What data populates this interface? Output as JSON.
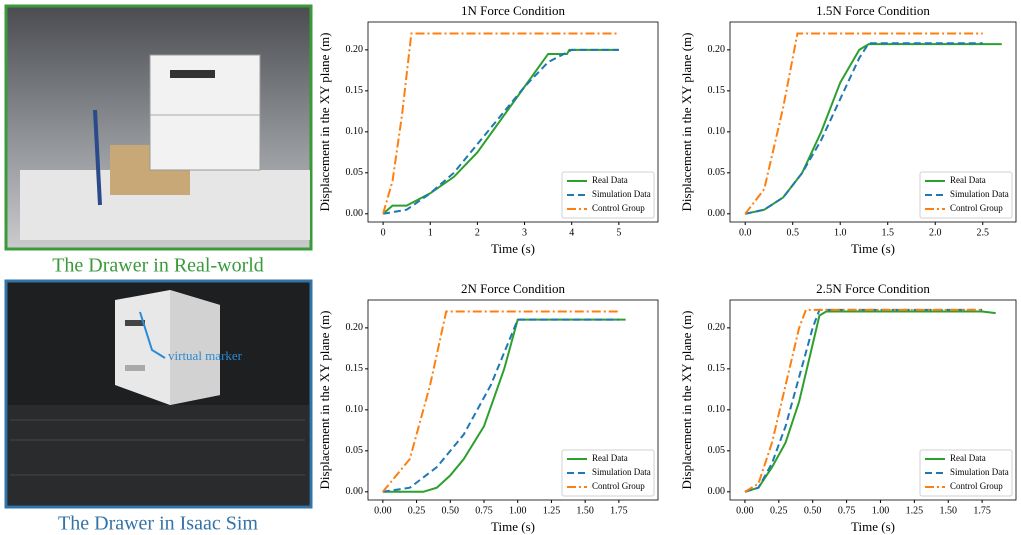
{
  "images": [
    {
      "caption": "The Drawer in Real-world"
    },
    {
      "caption": "The Drawer in Isaac Sim",
      "annotation": "virtual marker"
    }
  ],
  "chart_data": [
    {
      "type": "line",
      "title": "1N Force Condition",
      "xlabel": "Time (s)",
      "ylabel": "Displacement in the XY plane (m)",
      "xlim": [
        -0.32,
        5.83
      ],
      "ylim": [
        -0.01,
        0.234
      ],
      "xticks": [
        0,
        1,
        2,
        3,
        4,
        5
      ],
      "yticks": [
        {
          "value": 0,
          "label": "0.00"
        },
        {
          "value": 0.05,
          "label": "0.05"
        },
        {
          "value": 0.1,
          "label": "0.10"
        },
        {
          "value": 0.15,
          "label": "0.15"
        },
        {
          "value": 0.2,
          "label": "0.20"
        }
      ],
      "legend": "lower right",
      "series": [
        {
          "name": "Real Data",
          "color": "#2ca02c",
          "style": "solid",
          "x": [
            0,
            0.2,
            0.5,
            1,
            1.5,
            2,
            2.5,
            3,
            3.5,
            3.9,
            3.95,
            5
          ],
          "values": [
            0,
            0.01,
            0.01,
            0.025,
            0.045,
            0.075,
            0.115,
            0.155,
            0.195,
            0.195,
            0.2,
            0.2
          ]
        },
        {
          "name": "Simulation Data",
          "color": "#1f77b4",
          "style": "dashed",
          "x": [
            0,
            0.5,
            1,
            1.5,
            2,
            2.5,
            3,
            3.5,
            4,
            5
          ],
          "values": [
            0,
            0.005,
            0.025,
            0.05,
            0.085,
            0.12,
            0.155,
            0.185,
            0.2,
            0.2
          ]
        },
        {
          "name": "Control Group",
          "color": "#ff7f0e",
          "style": "dashdot",
          "x": [
            0,
            0.2,
            0.4,
            0.6,
            5
          ],
          "values": [
            0,
            0.04,
            0.12,
            0.22,
            0.22
          ]
        }
      ]
    },
    {
      "type": "line",
      "title": "1.5N Force Condition",
      "xlabel": "Time (s)",
      "ylabel": "Displacement in the XY plane (m)",
      "xlim": [
        -0.16,
        2.85
      ],
      "ylim": [
        -0.01,
        0.234
      ],
      "xticks": [
        {
          "value": 0,
          "label": "0.0"
        },
        {
          "value": 0.5,
          "label": "0.5"
        },
        {
          "value": 1,
          "label": "1.0"
        },
        {
          "value": 1.5,
          "label": "1.5"
        },
        {
          "value": 2,
          "label": "2.0"
        },
        {
          "value": 2.5,
          "label": "2.5"
        }
      ],
      "yticks": [
        {
          "value": 0,
          "label": "0.00"
        },
        {
          "value": 0.05,
          "label": "0.05"
        },
        {
          "value": 0.1,
          "label": "0.10"
        },
        {
          "value": 0.15,
          "label": "0.15"
        },
        {
          "value": 0.2,
          "label": "0.20"
        }
      ],
      "legend": "lower right",
      "series": [
        {
          "name": "Real Data",
          "color": "#2ca02c",
          "style": "solid",
          "x": [
            0,
            0.2,
            0.4,
            0.6,
            0.8,
            1.0,
            1.2,
            1.3,
            2.7
          ],
          "values": [
            0,
            0.005,
            0.02,
            0.05,
            0.1,
            0.16,
            0.2,
            0.207,
            0.207
          ]
        },
        {
          "name": "Simulation Data",
          "color": "#1f77b4",
          "style": "dashed",
          "x": [
            0,
            0.2,
            0.4,
            0.6,
            0.8,
            1.0,
            1.2,
            1.3,
            2.5
          ],
          "values": [
            0,
            0.005,
            0.02,
            0.05,
            0.09,
            0.14,
            0.19,
            0.208,
            0.208
          ]
        },
        {
          "name": "Control Group",
          "color": "#ff7f0e",
          "style": "dashdot",
          "x": [
            0,
            0.2,
            0.4,
            0.55,
            2.5
          ],
          "values": [
            0,
            0.03,
            0.13,
            0.22,
            0.22
          ]
        }
      ]
    },
    {
      "type": "line",
      "title": "2N Force Condition",
      "xlabel": "Time (s)",
      "ylabel": "Displacement in the XY plane (m)",
      "xlim": [
        -0.11,
        2.04
      ],
      "ylim": [
        -0.01,
        0.234
      ],
      "xticks": [
        {
          "value": 0,
          "label": "0.00"
        },
        {
          "value": 0.25,
          "label": "0.25"
        },
        {
          "value": 0.5,
          "label": "0.50"
        },
        {
          "value": 0.75,
          "label": "0.75"
        },
        {
          "value": 1,
          "label": "1.00"
        },
        {
          "value": 1.25,
          "label": "1.25"
        },
        {
          "value": 1.5,
          "label": "1.50"
        },
        {
          "value": 1.75,
          "label": "1.75"
        }
      ],
      "yticks": [
        {
          "value": 0,
          "label": "0.00"
        },
        {
          "value": 0.05,
          "label": "0.05"
        },
        {
          "value": 0.1,
          "label": "0.10"
        },
        {
          "value": 0.15,
          "label": "0.15"
        },
        {
          "value": 0.2,
          "label": "0.20"
        }
      ],
      "legend": "lower right",
      "series": [
        {
          "name": "Real Data",
          "color": "#2ca02c",
          "style": "solid",
          "x": [
            0,
            0.3,
            0.4,
            0.5,
            0.6,
            0.75,
            0.9,
            1.0,
            1.8
          ],
          "values": [
            0,
            0,
            0.005,
            0.02,
            0.04,
            0.08,
            0.15,
            0.21,
            0.21
          ]
        },
        {
          "name": "Simulation Data",
          "color": "#1f77b4",
          "style": "dashed",
          "x": [
            0,
            0.2,
            0.4,
            0.6,
            0.8,
            0.95,
            1.0,
            1.75
          ],
          "values": [
            0,
            0.005,
            0.03,
            0.07,
            0.13,
            0.19,
            0.21,
            0.21
          ]
        },
        {
          "name": "Control Group",
          "color": "#ff7f0e",
          "style": "dashdot",
          "x": [
            0,
            0.2,
            0.35,
            0.47,
            1.75
          ],
          "values": [
            0,
            0.04,
            0.13,
            0.22,
            0.22
          ]
        }
      ]
    },
    {
      "type": "line",
      "title": "2.5N Force Condition",
      "xlabel": "Time (s)",
      "ylabel": "Displacement in the XY plane (m)",
      "xlim": [
        -0.11,
        2.0
      ],
      "ylim": [
        -0.01,
        0.234
      ],
      "xticks": [
        {
          "value": 0,
          "label": "0.00"
        },
        {
          "value": 0.25,
          "label": "0.25"
        },
        {
          "value": 0.5,
          "label": "0.50"
        },
        {
          "value": 0.75,
          "label": "0.75"
        },
        {
          "value": 1,
          "label": "1.00"
        },
        {
          "value": 1.25,
          "label": "1.25"
        },
        {
          "value": 1.5,
          "label": "1.50"
        },
        {
          "value": 1.75,
          "label": "1.75"
        }
      ],
      "yticks": [
        {
          "value": 0,
          "label": "0.00"
        },
        {
          "value": 0.05,
          "label": "0.05"
        },
        {
          "value": 0.1,
          "label": "0.10"
        },
        {
          "value": 0.15,
          "label": "0.15"
        },
        {
          "value": 0.2,
          "label": "0.20"
        }
      ],
      "legend": "lower right",
      "series": [
        {
          "name": "Real Data",
          "color": "#2ca02c",
          "style": "solid",
          "x": [
            0,
            0.1,
            0.2,
            0.3,
            0.4,
            0.5,
            0.55,
            0.6,
            1.75,
            1.85
          ],
          "values": [
            0,
            0.005,
            0.03,
            0.06,
            0.11,
            0.18,
            0.215,
            0.22,
            0.22,
            0.218
          ]
        },
        {
          "name": "Simulation Data",
          "color": "#1f77b4",
          "style": "dashed",
          "x": [
            0,
            0.1,
            0.2,
            0.3,
            0.4,
            0.5,
            0.55,
            1.75
          ],
          "values": [
            0,
            0.005,
            0.035,
            0.08,
            0.14,
            0.2,
            0.222,
            0.222
          ]
        },
        {
          "name": "Control Group",
          "color": "#ff7f0e",
          "style": "dashdot",
          "x": [
            0,
            0.1,
            0.2,
            0.3,
            0.4,
            0.45,
            1.75
          ],
          "values": [
            0,
            0.01,
            0.06,
            0.13,
            0.2,
            0.222,
            0.222
          ]
        }
      ]
    }
  ]
}
